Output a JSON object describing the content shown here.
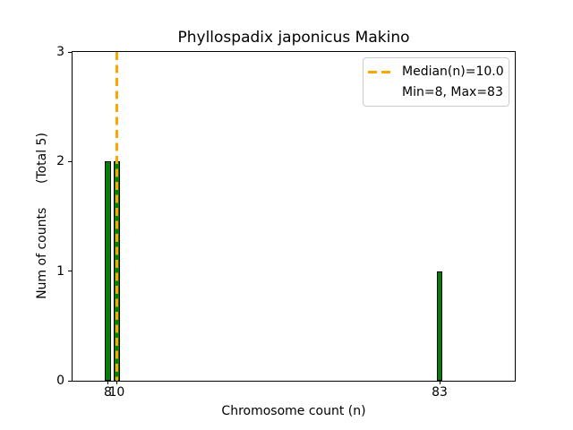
{
  "colors": {
    "bar_fill": "#008000",
    "bar_edge": "#000000",
    "median_line": "#FFA500",
    "axis": "#000000",
    "legend_border": "#cccccc",
    "background": "#ffffff",
    "text": "#000000"
  },
  "legend": {
    "position": "upper right",
    "entries": [
      {
        "icon": "orange-dashed-line",
        "label": "Median(n)=10.0"
      },
      {
        "icon": "none",
        "label": "Min=8, Max=83"
      }
    ]
  },
  "chart_data": {
    "type": "bar",
    "title": "Phyllospadix japonicus Makino",
    "xlabel": "Chromosome count (n)",
    "ylabel": "Num of counts      (Total 5)",
    "x": [
      8,
      10,
      83
    ],
    "values": [
      2,
      2,
      1
    ],
    "bar_width": 1.4,
    "xlim": [
      0,
      100
    ],
    "ylim": [
      0,
      3
    ],
    "x_ticks": [
      8,
      10,
      83
    ],
    "x_tick_labels": [
      "8",
      "10",
      "83"
    ],
    "y_ticks": [
      0,
      1,
      2,
      3
    ],
    "y_tick_labels": [
      "0",
      "1",
      "2",
      "3"
    ],
    "median": 10.0,
    "min": 8,
    "max": 83,
    "total_counts": 5,
    "grid": false,
    "legend_position": "upper right"
  }
}
